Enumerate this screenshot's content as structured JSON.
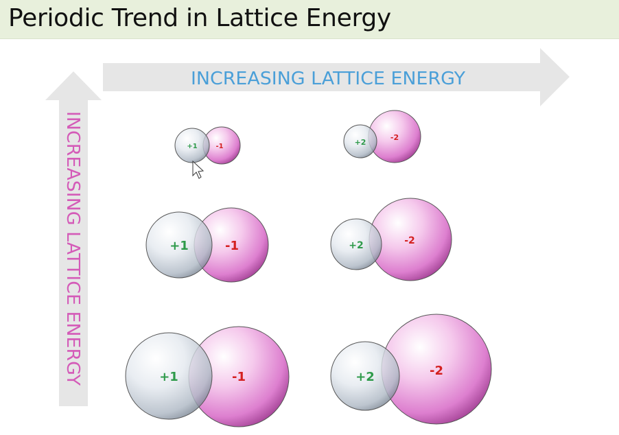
{
  "slide": {
    "title": "Periodic Trend in Lattice Energy"
  },
  "arrows": {
    "horizontal_label": "INCREASING LATTICE ENERGY",
    "vertical_label": "INCREASING LATTICE ENERGY"
  },
  "ion_pairs": [
    {
      "row": 1,
      "column": 1,
      "cation_charge": "+1",
      "anion_charge": "-1"
    },
    {
      "row": 1,
      "column": 2,
      "cation_charge": "+2",
      "anion_charge": "-2"
    },
    {
      "row": 2,
      "column": 1,
      "cation_charge": "+1",
      "anion_charge": "-1"
    },
    {
      "row": 2,
      "column": 2,
      "cation_charge": "+2",
      "anion_charge": "-2"
    },
    {
      "row": 3,
      "column": 1,
      "cation_charge": "+1",
      "anion_charge": "-1"
    },
    {
      "row": 3,
      "column": 2,
      "cation_charge": "+2",
      "anion_charge": "-2"
    }
  ],
  "colors": {
    "title_background": "#e8f0dc",
    "arrow_fill": "#e6e6e6",
    "horizontal_label": "#4a9fd8",
    "vertical_label": "#d45bb8",
    "cation_label": "#2e9a4a",
    "anion_label": "#d42020"
  }
}
